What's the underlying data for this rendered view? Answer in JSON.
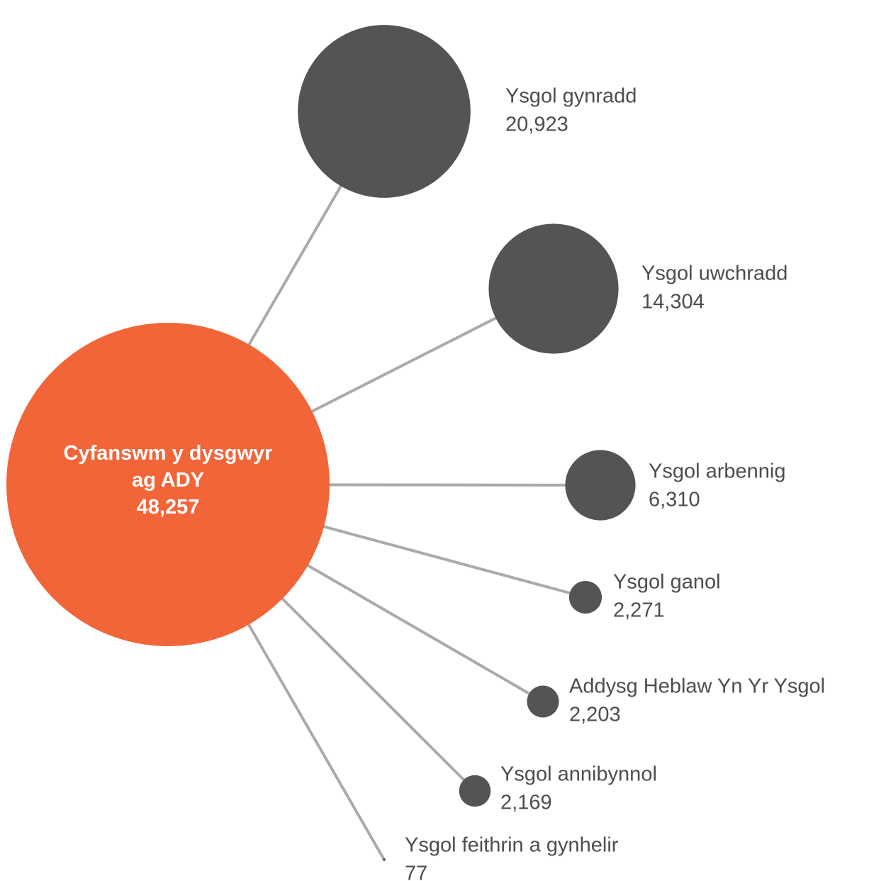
{
  "chart_data": {
    "type": "bubble",
    "center": {
      "label": "Cyfanswm y dysgwyr ag ADY",
      "value": 48257,
      "value_label": "48,257",
      "color": "#f26539"
    },
    "categories": [
      "Ysgol gynradd",
      "Ysgol uwchradd",
      "Ysgol arbennig",
      "Ysgol ganol",
      "Addysg Heblaw Yn Yr Ysgol",
      "Ysgol annibynnol",
      "Ysgol feithrin a gynhelir"
    ],
    "values": [
      20923,
      14304,
      6310,
      2271,
      2203,
      2169,
      77
    ],
    "value_labels": [
      "20,923",
      "14,304",
      "6,310",
      "2,271",
      "2,203",
      "2,169",
      "77"
    ],
    "color": "#545456",
    "line_color": "#aaaaaa"
  }
}
